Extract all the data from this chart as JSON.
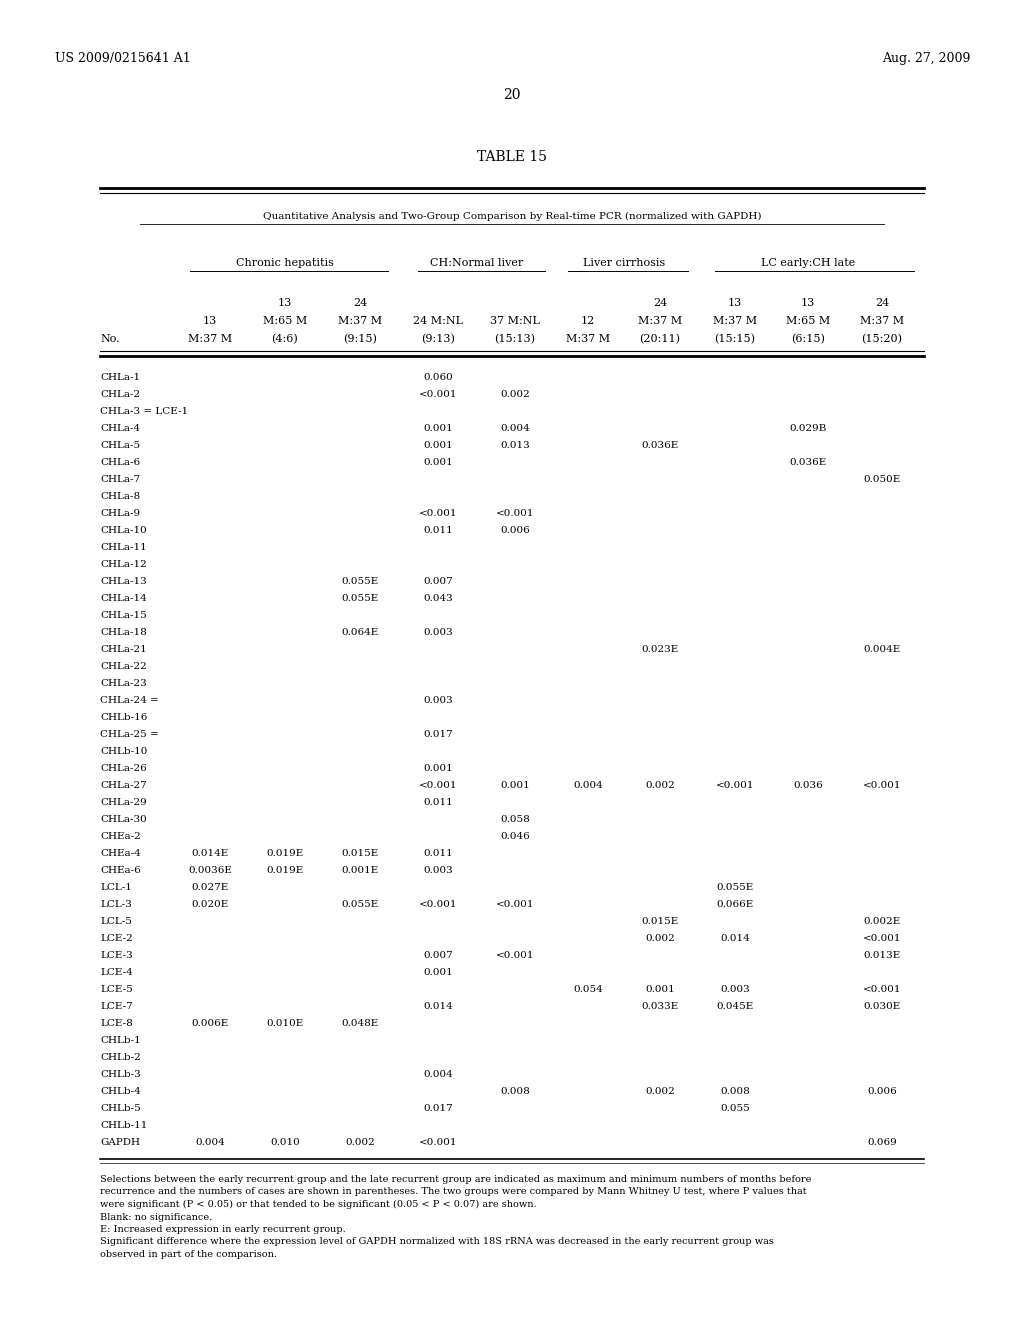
{
  "title": "TABLE 15",
  "subtitle": "Quantitative Analysis and Two-Group Comparison by Real-time PCR (normalized with GAPDH)",
  "header_patent": "US 2009/0215641 A1",
  "header_date": "Aug. 27, 2009",
  "header_page": "20",
  "rows": [
    [
      "CHLa-1",
      "",
      "",
      "",
      "0.060",
      "",
      "",
      "",
      "",
      "",
      ""
    ],
    [
      "CHLa-2",
      "",
      "",
      "",
      "<0.001",
      "0.002",
      "",
      "",
      "",
      "",
      ""
    ],
    [
      "CHLa-3 = LCE-1",
      "",
      "",
      "",
      "",
      "",
      "",
      "",
      "",
      "",
      ""
    ],
    [
      "CHLa-4",
      "",
      "",
      "",
      "0.001",
      "0.004",
      "",
      "",
      "",
      "0.029B",
      ""
    ],
    [
      "CHLa-5",
      "",
      "",
      "",
      "0.001",
      "0.013",
      "",
      "0.036E",
      "",
      "",
      ""
    ],
    [
      "CHLa-6",
      "",
      "",
      "",
      "0.001",
      "",
      "",
      "",
      "",
      "0.036E",
      ""
    ],
    [
      "CHLa-7",
      "",
      "",
      "",
      "",
      "",
      "",
      "",
      "",
      "",
      "0.050E"
    ],
    [
      "CHLa-8",
      "",
      "",
      "",
      "",
      "",
      "",
      "",
      "",
      "",
      ""
    ],
    [
      "CHLa-9",
      "",
      "",
      "",
      "<0.001",
      "<0.001",
      "",
      "",
      "",
      "",
      ""
    ],
    [
      "CHLa-10",
      "",
      "",
      "",
      "0.011",
      "0.006",
      "",
      "",
      "",
      "",
      ""
    ],
    [
      "CHLa-11",
      "",
      "",
      "",
      "",
      "",
      "",
      "",
      "",
      "",
      ""
    ],
    [
      "CHLa-12",
      "",
      "",
      "",
      "",
      "",
      "",
      "",
      "",
      "",
      ""
    ],
    [
      "CHLa-13",
      "",
      "",
      "0.055E",
      "0.007",
      "",
      "",
      "",
      "",
      "",
      ""
    ],
    [
      "CHLa-14",
      "",
      "",
      "0.055E",
      "0.043",
      "",
      "",
      "",
      "",
      "",
      ""
    ],
    [
      "CHLa-15",
      "",
      "",
      "",
      "",
      "",
      "",
      "",
      "",
      "",
      ""
    ],
    [
      "CHLa-18",
      "",
      "",
      "0.064E",
      "0.003",
      "",
      "",
      "",
      "",
      "",
      ""
    ],
    [
      "CHLa-21",
      "",
      "",
      "",
      "",
      "",
      "",
      "0.023E",
      "",
      "",
      "0.004E"
    ],
    [
      "CHLa-22",
      "",
      "",
      "",
      "",
      "",
      "",
      "",
      "",
      "",
      ""
    ],
    [
      "CHLa-23",
      "",
      "",
      "",
      "",
      "",
      "",
      "",
      "",
      "",
      ""
    ],
    [
      "CHLa-24 =",
      "",
      "",
      "",
      "0.003",
      "",
      "",
      "",
      "",
      "",
      ""
    ],
    [
      "CHLb-16",
      "",
      "",
      "",
      "",
      "",
      "",
      "",
      "",
      "",
      ""
    ],
    [
      "CHLa-25 =",
      "",
      "",
      "",
      "0.017",
      "",
      "",
      "",
      "",
      "",
      ""
    ],
    [
      "CHLb-10",
      "",
      "",
      "",
      "",
      "",
      "",
      "",
      "",
      "",
      ""
    ],
    [
      "CHLa-26",
      "",
      "",
      "",
      "0.001",
      "",
      "",
      "",
      "",
      "",
      ""
    ],
    [
      "CHLa-27",
      "",
      "",
      "",
      "<0.001",
      "0.001",
      "0.004",
      "0.002",
      "<0.001",
      "0.036",
      "<0.001"
    ],
    [
      "CHLa-29",
      "",
      "",
      "",
      "0.011",
      "",
      "",
      "",
      "",
      "",
      ""
    ],
    [
      "CHLa-30",
      "",
      "",
      "",
      "",
      "0.058",
      "",
      "",
      "",
      "",
      ""
    ],
    [
      "CHEa-2",
      "",
      "",
      "",
      "",
      "0.046",
      "",
      "",
      "",
      "",
      ""
    ],
    [
      "CHEa-4",
      "0.014E",
      "0.019E",
      "0.015E",
      "0.011",
      "",
      "",
      "",
      "",
      "",
      ""
    ],
    [
      "CHEa-6",
      "0.0036E",
      "0.019E",
      "0.001E",
      "0.003",
      "",
      "",
      "",
      "",
      "",
      ""
    ],
    [
      "LCL-1",
      "0.027E",
      "",
      "",
      "",
      "",
      "",
      "",
      "0.055E",
      "",
      ""
    ],
    [
      "LCL-3",
      "0.020E",
      "",
      "0.055E",
      "<0.001",
      "<0.001",
      "",
      "",
      "0.066E",
      "",
      ""
    ],
    [
      "LCL-5",
      "",
      "",
      "",
      "",
      "",
      "",
      "0.015E",
      "",
      "",
      "0.002E"
    ],
    [
      "LCE-2",
      "",
      "",
      "",
      "",
      "",
      "",
      "0.002",
      "0.014",
      "",
      "<0.001"
    ],
    [
      "LCE-3",
      "",
      "",
      "",
      "0.007",
      "<0.001",
      "",
      "",
      "",
      "",
      "0.013E"
    ],
    [
      "LCE-4",
      "",
      "",
      "",
      "0.001",
      "",
      "",
      "",
      "",
      "",
      ""
    ],
    [
      "LCE-5",
      "",
      "",
      "",
      "",
      "",
      "0.054",
      "0.001",
      "0.003",
      "",
      "<0.001"
    ],
    [
      "LCE-7",
      "",
      "",
      "",
      "0.014",
      "",
      "",
      "0.033E",
      "0.045E",
      "",
      "0.030E"
    ],
    [
      "LCE-8",
      "0.006E",
      "0.010E",
      "0.048E",
      "",
      "",
      "",
      "",
      "",
      "",
      ""
    ],
    [
      "CHLb-1",
      "",
      "",
      "",
      "",
      "",
      "",
      "",
      "",
      "",
      ""
    ],
    [
      "CHLb-2",
      "",
      "",
      "",
      "",
      "",
      "",
      "",
      "",
      "",
      ""
    ],
    [
      "CHLb-3",
      "",
      "",
      "",
      "0.004",
      "",
      "",
      "",
      "",
      "",
      ""
    ],
    [
      "CHLb-4",
      "",
      "",
      "",
      "",
      "0.008",
      "",
      "0.002",
      "0.008",
      "",
      "0.006"
    ],
    [
      "CHLb-5",
      "",
      "",
      "",
      "0.017",
      "",
      "",
      "",
      "0.055",
      "",
      ""
    ],
    [
      "CHLb-11",
      "",
      "",
      "",
      "",
      "",
      "",
      "",
      "",
      "",
      ""
    ],
    [
      "GAPDH",
      "0.004",
      "0.010",
      "0.002",
      "<0.001",
      "",
      "",
      "",
      "",
      "",
      "0.069"
    ]
  ],
  "footnotes": [
    "Selections between the early recurrent group and the late recurrent group are indicated as maximum and minimum numbers of months before",
    "recurrence and the numbers of cases are shown in parentheses. The two groups were compared by Mann Whitney U test, where P values that",
    "were significant (P < 0.05) or that tended to be significant (0.05 < P < 0.07) are shown.",
    "Blank: no significance.",
    "E: Increased expression in early recurrent group.",
    "Significant difference where the expression level of GAPDH normalized with 18S rRNA was decreased in the early recurrent group was",
    "observed in part of the comparison."
  ]
}
